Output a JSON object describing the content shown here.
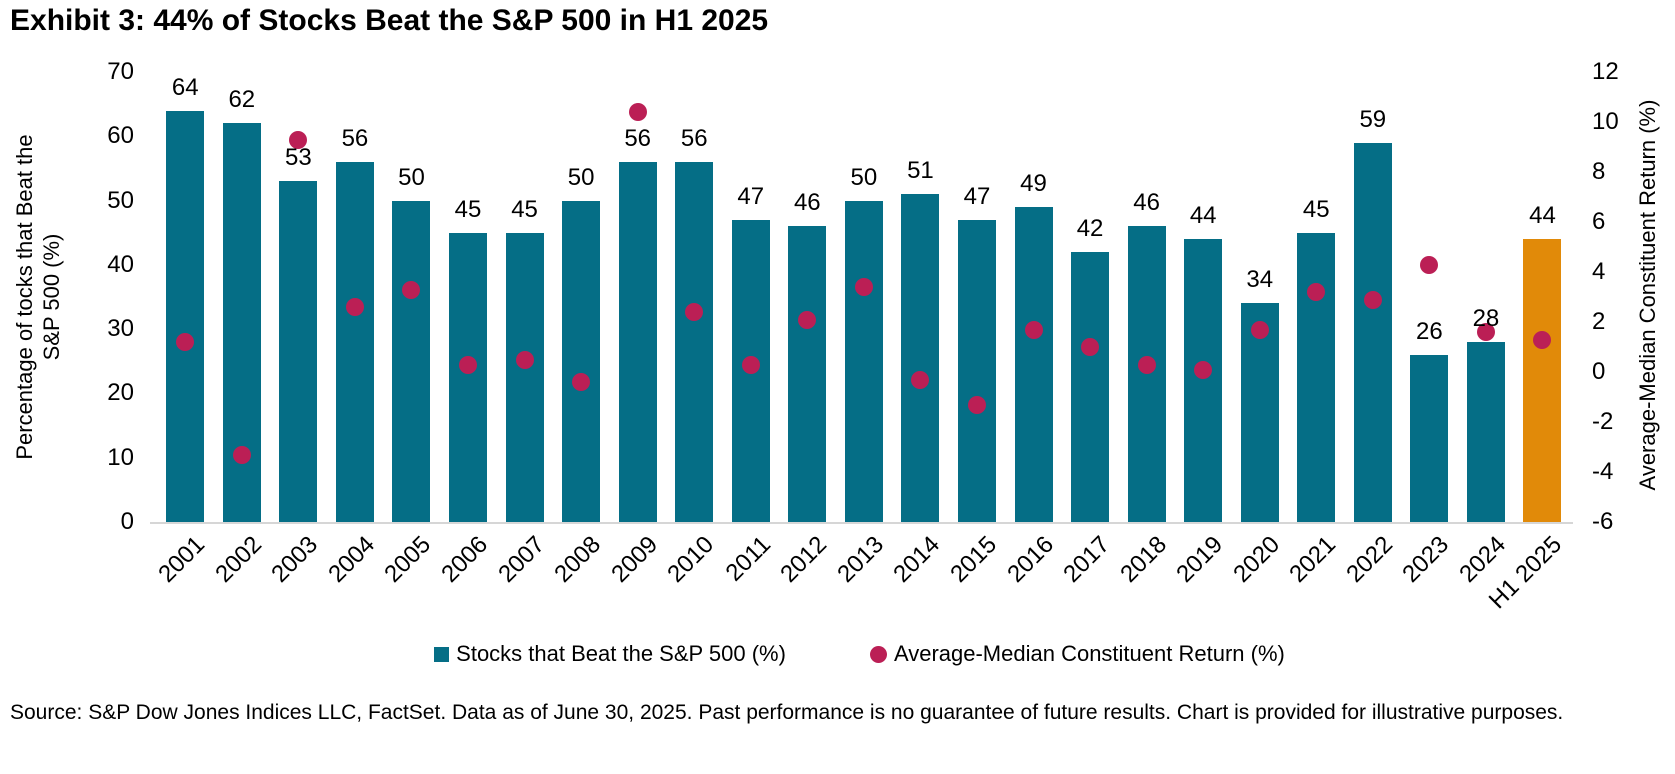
{
  "page": {
    "title": "Exhibit 3: 44% of Stocks Beat the S&P 500 in H1 2025",
    "source_note": "Source: S&P Dow Jones Indices LLC, FactSet. Data as of June 30, 2025. Past performance is no guarantee of future results. Chart is provided for illustrative purposes."
  },
  "colors": {
    "bar_teal": "#056E86",
    "bar_highlight_orange": "#E18A09",
    "dot_crimson": "#BB1F55",
    "axis_line": "#D6D6D6",
    "text": "#000000"
  },
  "legend": {
    "items": [
      {
        "label": "Stocks that Beat the S&P 500 (%)",
        "swatch": "teal-square"
      },
      {
        "label": "Average-Median Constituent Return (%)",
        "swatch": "crimson-circle"
      }
    ]
  },
  "chart_data": {
    "type": "bar",
    "subtype": "combo-bar-with-scatter-dots",
    "title": "Exhibit 3: 44% of Stocks Beat the S&P 500 in H1 2025",
    "categories": [
      "2001",
      "2002",
      "2003",
      "2004",
      "2005",
      "2006",
      "2007",
      "2008",
      "2009",
      "2010",
      "2011",
      "2012",
      "2013",
      "2014",
      "2015",
      "2016",
      "2017",
      "2018",
      "2019",
      "2020",
      "2021",
      "2022",
      "2023",
      "2024",
      "H1 2025"
    ],
    "series": [
      {
        "name": "Stocks that Beat the S&P 500 (%)",
        "type": "bar",
        "axis": "left",
        "values": [
          64,
          62,
          53,
          56,
          50,
          45,
          45,
          50,
          56,
          56,
          47,
          46,
          50,
          51,
          47,
          49,
          42,
          46,
          44,
          34,
          45,
          59,
          26,
          28,
          44
        ]
      },
      {
        "name": "Average-Median Constituent Return (%)",
        "type": "scatter",
        "axis": "right",
        "values": [
          1.2,
          -3.3,
          9.3,
          2.6,
          3.3,
          0.3,
          0.5,
          -0.4,
          10.4,
          2.4,
          0.3,
          2.1,
          3.4,
          -0.3,
          -1.3,
          1.7,
          1.0,
          0.3,
          0.1,
          1.7,
          3.2,
          2.9,
          4.3,
          1.6,
          1.3
        ]
      }
    ],
    "highlight_category": "H1 2025",
    "bar_value_labels_shown": true,
    "grid": false,
    "legend_position": "bottom",
    "left_axis": {
      "title": "Percentage of tocks that Beat the S&P 500 (%)",
      "title_line1": "Percentage of tocks that Beat the",
      "title_line2": "S&P 500 (%)",
      "min": 0,
      "max": 70,
      "ticks": [
        0,
        10,
        20,
        30,
        40,
        50,
        60,
        70
      ]
    },
    "right_axis": {
      "title": "Average-Median Constituent Return (%)",
      "min": -6,
      "max": 12,
      "ticks": [
        -6,
        -4,
        -2,
        0,
        2,
        4,
        6,
        8,
        10,
        12
      ]
    }
  }
}
